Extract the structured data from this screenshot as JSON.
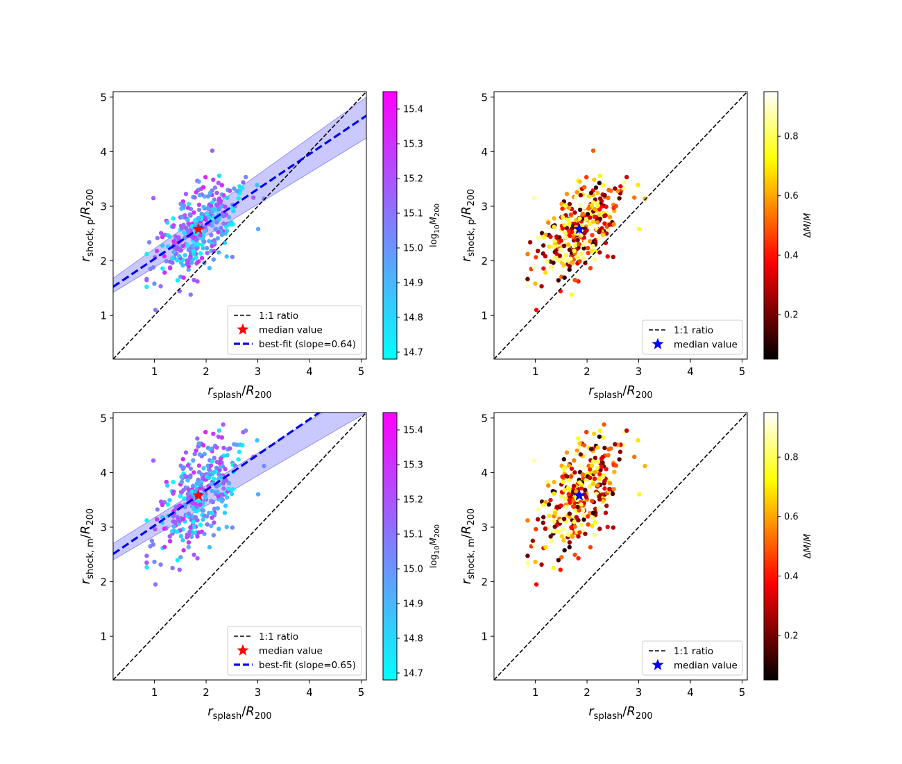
{
  "chart_data": [
    {
      "type": "scatter",
      "panel": "top-left",
      "xlabel": "r_splash/R_200",
      "ylabel": "r_shock,p/R_200",
      "xlim": [
        0.2,
        5.1
      ],
      "ylim": [
        0.2,
        5.1
      ],
      "xticks": [
        1,
        2,
        3,
        4,
        5
      ],
      "yticks": [
        1,
        2,
        3,
        4,
        5
      ],
      "colorbar": {
        "label": "log10 M200",
        "colormap": "cool",
        "range": [
          14.68,
          15.45
        ],
        "ticks": [
          "14.7",
          "14.8",
          "14.9",
          "15.0",
          "15.1",
          "15.2",
          "15.3",
          "15.4"
        ]
      },
      "median": {
        "x": 1.85,
        "y": 2.58,
        "color": "#ff0000"
      },
      "fit": {
        "slope": 0.64,
        "band": {
          "at_x0.2": [
            1.42,
            1.68
          ],
          "at_x5.1": [
            4.25,
            5.0
          ]
        }
      },
      "legend": {
        "position": "lower-right",
        "entries": [
          "1:1 ratio",
          "median value",
          "best-fit (slope=0.64)"
        ]
      },
      "grid": false
    },
    {
      "type": "scatter",
      "panel": "top-right",
      "xlabel": "r_splash/R_200",
      "ylabel": "r_shock,p/R_200",
      "xlim": [
        0.2,
        5.1
      ],
      "ylim": [
        0.2,
        5.1
      ],
      "xticks": [
        1,
        2,
        3,
        4,
        5
      ],
      "yticks": [
        1,
        2,
        3,
        4,
        5
      ],
      "colorbar": {
        "label": "ΔM/M",
        "colormap": "hot",
        "range": [
          0.05,
          0.95
        ],
        "ticks": [
          "0.2",
          "0.4",
          "0.6",
          "0.8"
        ]
      },
      "median": {
        "x": 1.85,
        "y": 2.58,
        "color": "#0000ff"
      },
      "legend": {
        "position": "lower-right",
        "entries": [
          "1:1 ratio",
          "median value"
        ]
      },
      "grid": false
    },
    {
      "type": "scatter",
      "panel": "bottom-left",
      "xlabel": "r_splash/R_200",
      "ylabel": "r_shock,m/R_200",
      "xlim": [
        0.2,
        5.1
      ],
      "ylim": [
        0.2,
        5.1
      ],
      "xticks": [
        1,
        2,
        3,
        4,
        5
      ],
      "yticks": [
        1,
        2,
        3,
        4,
        5
      ],
      "colorbar": {
        "label": "log10 M200",
        "colormap": "cool",
        "range": [
          14.68,
          15.45
        ],
        "ticks": [
          "14.7",
          "14.8",
          "14.9",
          "15.0",
          "15.1",
          "15.2",
          "15.3",
          "15.4"
        ]
      },
      "median": {
        "x": 1.85,
        "y": 3.58,
        "color": "#ff0000"
      },
      "fit": {
        "slope": 0.65,
        "band": {
          "at_x0.2": [
            2.4,
            2.7
          ],
          "at_x5.1": [
            5.1,
            5.6
          ]
        }
      },
      "legend": {
        "position": "lower-right",
        "entries": [
          "1:1 ratio",
          "median value",
          "best-fit (slope=0.65)"
        ]
      },
      "grid": false
    },
    {
      "type": "scatter",
      "panel": "bottom-right",
      "xlabel": "r_splash/R_200",
      "ylabel": "r_shock,m/R_200",
      "xlim": [
        0.2,
        5.1
      ],
      "ylim": [
        0.2,
        5.1
      ],
      "xticks": [
        1,
        2,
        3,
        4,
        5
      ],
      "yticks": [
        1,
        2,
        3,
        4,
        5
      ],
      "colorbar": {
        "label": "ΔM/M",
        "colormap": "hot",
        "range": [
          0.05,
          0.95
        ],
        "ticks": [
          "0.2",
          "0.4",
          "0.6",
          "0.8"
        ]
      },
      "median": {
        "x": 1.85,
        "y": 3.58,
        "color": "#0000ff"
      },
      "legend": {
        "position": "lower-right",
        "entries": [
          "1:1 ratio",
          "median value"
        ]
      },
      "grid": false
    }
  ],
  "scatter_sample": {
    "n_points": 340,
    "x_center": 1.85,
    "x_spread": 0.4,
    "y_center_top": 2.58,
    "y_spread_top": 0.45,
    "y_center_bottom": 3.58,
    "y_spread_bottom": 0.55,
    "outliers_top": [
      [
        0.9,
        2.34
      ],
      [
        1.02,
        1.1
      ],
      [
        2.12,
        4.02
      ],
      [
        3.12,
        3.14
      ],
      [
        1.7,
        1.38
      ],
      [
        0.98,
        3.15
      ]
    ],
    "outliers_bottom": [
      [
        0.95,
        2.75
      ],
      [
        1.02,
        1.95
      ],
      [
        2.33,
        4.88
      ],
      [
        3.12,
        4.12
      ],
      [
        1.35,
        2.25
      ],
      [
        0.98,
        4.22
      ]
    ]
  }
}
